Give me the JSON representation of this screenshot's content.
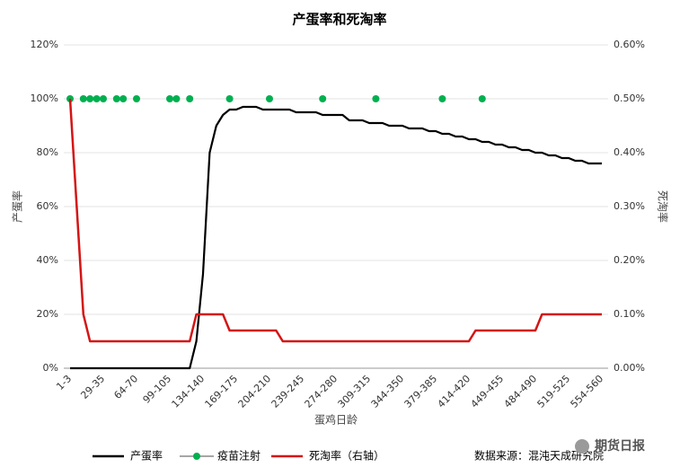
{
  "chart_data": {
    "type": "line",
    "title": "产蛋率和死淘率",
    "x_label": "蛋鸡日龄",
    "y_label": "产蛋率",
    "y2_label": "死淘率",
    "source": "数据来源：混沌天成研究院",
    "watermark": "期货日报",
    "categories": [
      "1-3",
      null,
      null,
      null,
      null,
      "29-35",
      null,
      null,
      null,
      null,
      "64-70",
      null,
      null,
      null,
      null,
      "99-105",
      null,
      null,
      null,
      null,
      "134-140",
      null,
      null,
      null,
      null,
      "169-175",
      null,
      null,
      null,
      null,
      "204-210",
      null,
      null,
      null,
      null,
      "239-245",
      null,
      null,
      null,
      null,
      "274-280",
      null,
      null,
      null,
      null,
      "309-315",
      null,
      null,
      null,
      null,
      "344-350",
      null,
      null,
      null,
      null,
      "379-385",
      null,
      null,
      null,
      null,
      "414-420",
      null,
      null,
      null,
      null,
      "449-455",
      null,
      null,
      null,
      null,
      "484-490",
      null,
      null,
      null,
      null,
      "519-525",
      null,
      null,
      null,
      null,
      "554-560"
    ],
    "ylim": [
      0,
      120
    ],
    "yticks": [
      {
        "value": 0,
        "label": "0%"
      },
      {
        "value": 20,
        "label": "20%"
      },
      {
        "value": 40,
        "label": "40%"
      },
      {
        "value": 60,
        "label": "60%"
      },
      {
        "value": 80,
        "label": "80%"
      },
      {
        "value": 100,
        "label": "100%"
      },
      {
        "value": 120,
        "label": "120%"
      }
    ],
    "y2lim": [
      0,
      0.6
    ],
    "y2ticks": [
      {
        "value": 0,
        "label": "0.00%"
      },
      {
        "value": 0.1,
        "label": "0.10%"
      },
      {
        "value": 0.2,
        "label": "0.20%"
      },
      {
        "value": 0.3,
        "label": "0.30%"
      },
      {
        "value": 0.4,
        "label": "0.40%"
      },
      {
        "value": 0.5,
        "label": "0.50%"
      },
      {
        "value": 0.6,
        "label": "0.60%"
      }
    ],
    "grid": true,
    "legend": "bottom",
    "series": [
      {
        "name": "产蛋率",
        "color": "#000000",
        "mode": "line",
        "values": [
          0,
          0,
          0,
          0,
          0,
          0,
          0,
          0,
          0,
          0,
          0,
          0,
          0,
          0,
          0,
          0,
          0,
          0,
          0,
          10,
          35,
          80,
          90,
          94,
          96,
          96,
          97,
          97,
          97,
          96,
          96,
          96,
          96,
          96,
          95,
          95,
          95,
          95,
          94,
          94,
          94,
          94,
          92,
          92,
          92,
          91,
          91,
          91,
          90,
          90,
          90,
          89,
          89,
          89,
          88,
          88,
          87,
          87,
          86,
          86,
          85,
          85,
          84,
          84,
          83,
          83,
          82,
          82,
          81,
          81,
          80,
          80,
          79,
          79,
          78,
          78,
          77,
          77,
          76,
          76,
          76
        ]
      },
      {
        "name": "疫苗注射",
        "color": "#00b050",
        "mode": "markers",
        "values": [
          100,
          null,
          100,
          100,
          100,
          100,
          null,
          100,
          100,
          null,
          100,
          null,
          null,
          null,
          null,
          100,
          100,
          null,
          100,
          null,
          null,
          null,
          null,
          null,
          100,
          null,
          null,
          null,
          null,
          null,
          100,
          null,
          null,
          null,
          null,
          null,
          null,
          null,
          100,
          null,
          null,
          null,
          null,
          null,
          null,
          null,
          100,
          null,
          null,
          null,
          null,
          null,
          null,
          null,
          null,
          null,
          100,
          null,
          null,
          null,
          null,
          null,
          100,
          null,
          null,
          null,
          null,
          null,
          null,
          null,
          null,
          null,
          null,
          null,
          null,
          null,
          null,
          null,
          null,
          null,
          null
        ]
      },
      {
        "name": "死淘率（右轴）",
        "color": "#d41414",
        "mode": "line",
        "axis": "y2",
        "values": [
          0.5,
          0.3,
          0.1,
          0.05,
          0.05,
          0.05,
          0.05,
          0.05,
          0.05,
          0.05,
          0.05,
          0.05,
          0.05,
          0.05,
          0.05,
          0.05,
          0.05,
          0.05,
          0.05,
          0.1,
          0.1,
          0.1,
          0.1,
          0.1,
          0.07,
          0.07,
          0.07,
          0.07,
          0.07,
          0.07,
          0.07,
          0.07,
          0.05,
          0.05,
          0.05,
          0.05,
          0.05,
          0.05,
          0.05,
          0.05,
          0.05,
          0.05,
          0.05,
          0.05,
          0.05,
          0.05,
          0.05,
          0.05,
          0.05,
          0.05,
          0.05,
          0.05,
          0.05,
          0.05,
          0.05,
          0.05,
          0.05,
          0.05,
          0.05,
          0.05,
          0.05,
          0.07,
          0.07,
          0.07,
          0.07,
          0.07,
          0.07,
          0.07,
          0.07,
          0.07,
          0.07,
          0.1,
          0.1,
          0.1,
          0.1,
          0.1,
          0.1,
          0.1,
          0.1,
          0.1,
          0.1
        ]
      }
    ]
  }
}
